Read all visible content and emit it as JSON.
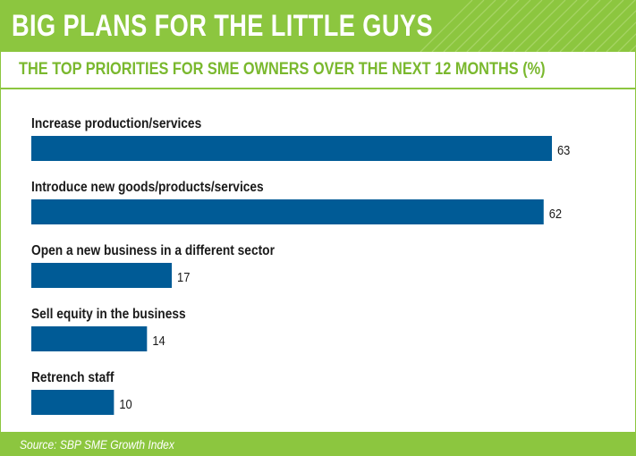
{
  "title": "BIG PLANS FOR THE LITTLE GUYS",
  "source": "Source: SBP SME Growth Index",
  "colors": {
    "accent_green": "#8cc63f",
    "subtitle_green": "#7ab82e",
    "bar_blue": "#005b96",
    "text": "#1a1a1a"
  },
  "chart_data": {
    "type": "bar",
    "orientation": "horizontal",
    "title": "THE TOP PRIORITIES FOR SME OWNERS OVER THE NEXT 12 MONTHS (%)",
    "categories": [
      "Increase production/services",
      "Introduce new goods/products/services",
      "Open a new business in a different sector",
      "Sell equity in the business",
      "Retrench staff"
    ],
    "values": [
      63,
      62,
      17,
      14,
      10
    ],
    "xlim": [
      0,
      63
    ],
    "grid": false,
    "legend": "none",
    "data_labels": true
  }
}
